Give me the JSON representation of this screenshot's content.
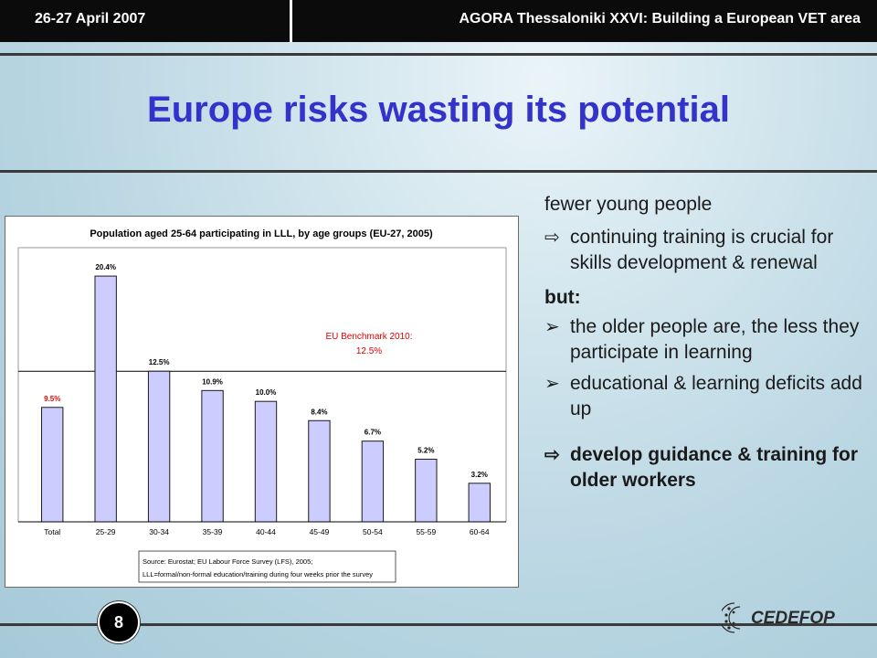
{
  "header": {
    "date": "26-27 April 2007",
    "conference": "AGORA Thessaloniki XXVI: Building a European VET area"
  },
  "slide": {
    "title": "Europe risks wasting its potential",
    "page_number": "8",
    "logo_text": "CEDEFOP"
  },
  "bullets": {
    "intro": "fewer young people",
    "point1": "continuing training is crucial for skills development & renewal",
    "but_label": "but:",
    "point2": "the older people are, the less they participate in learning",
    "point3": "educational & learning deficits add up",
    "conclusion": "develop guidance & training for older workers"
  },
  "chart_data": {
    "type": "bar",
    "title": "Population aged 25-64 participating in LLL, by age groups (EU-27, 2005)",
    "categories": [
      "Total",
      "25-29",
      "30-34",
      "35-39",
      "40-44",
      "45-49",
      "50-54",
      "55-59",
      "60-64"
    ],
    "values": [
      9.5,
      20.4,
      12.5,
      10.9,
      10.0,
      8.4,
      6.7,
      5.2,
      3.2
    ],
    "value_labels": [
      "9.5%",
      "20.4%",
      "12.5%",
      "10.9%",
      "10.0%",
      "8.4%",
      "6.7%",
      "5.2%",
      "3.2%"
    ],
    "ylim": [
      0,
      22
    ],
    "benchmark": {
      "value": 12.5,
      "label_line1": "EU Benchmark 2010:",
      "label_line2": "12.5%"
    },
    "source_line1": "Source: Eurostat; EU Labour Force Survey (LFS), 2005;",
    "source_line2": "LLL=formal/non-formal education/training during four weeks prior the survey",
    "colors": {
      "bar_fill": "#ccccff",
      "bar_stroke": "#1a1a1a",
      "benchmark": "#e00000",
      "title": "#000000",
      "grid": "#000000"
    }
  }
}
